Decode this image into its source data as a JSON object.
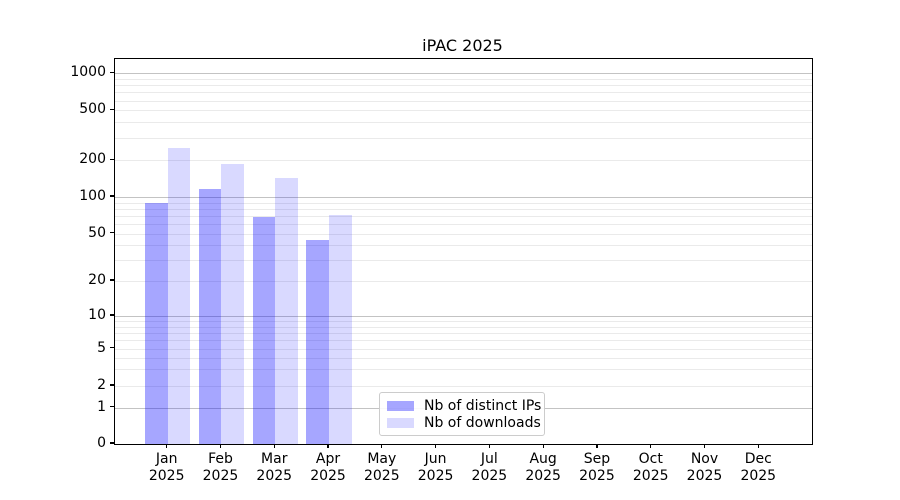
{
  "chart_data": {
    "type": "bar",
    "title": "iPAC 2025",
    "year": "2025",
    "categories": [
      "Jan",
      "Feb",
      "Mar",
      "Apr",
      "May",
      "Jun",
      "Jul",
      "Aug",
      "Sep",
      "Oct",
      "Nov",
      "Dec"
    ],
    "series": [
      {
        "name": "Nb of distinct IPs",
        "color": "#0000ff",
        "alpha": 0.35,
        "values": [
          90,
          117,
          68,
          44,
          null,
          null,
          null,
          null,
          null,
          null,
          null,
          null
        ]
      },
      {
        "name": "Nb of downloads",
        "color": "#0000ff",
        "alpha": 0.15,
        "values": [
          250,
          185,
          143,
          71,
          null,
          null,
          null,
          null,
          null,
          null,
          null,
          null
        ]
      }
    ],
    "yscale": "symlog",
    "yticks": [
      0,
      1,
      2,
      5,
      10,
      20,
      50,
      100,
      200,
      500,
      1000
    ],
    "ylim": [
      0,
      1300
    ],
    "grid": true,
    "legend_position": "lower center"
  }
}
